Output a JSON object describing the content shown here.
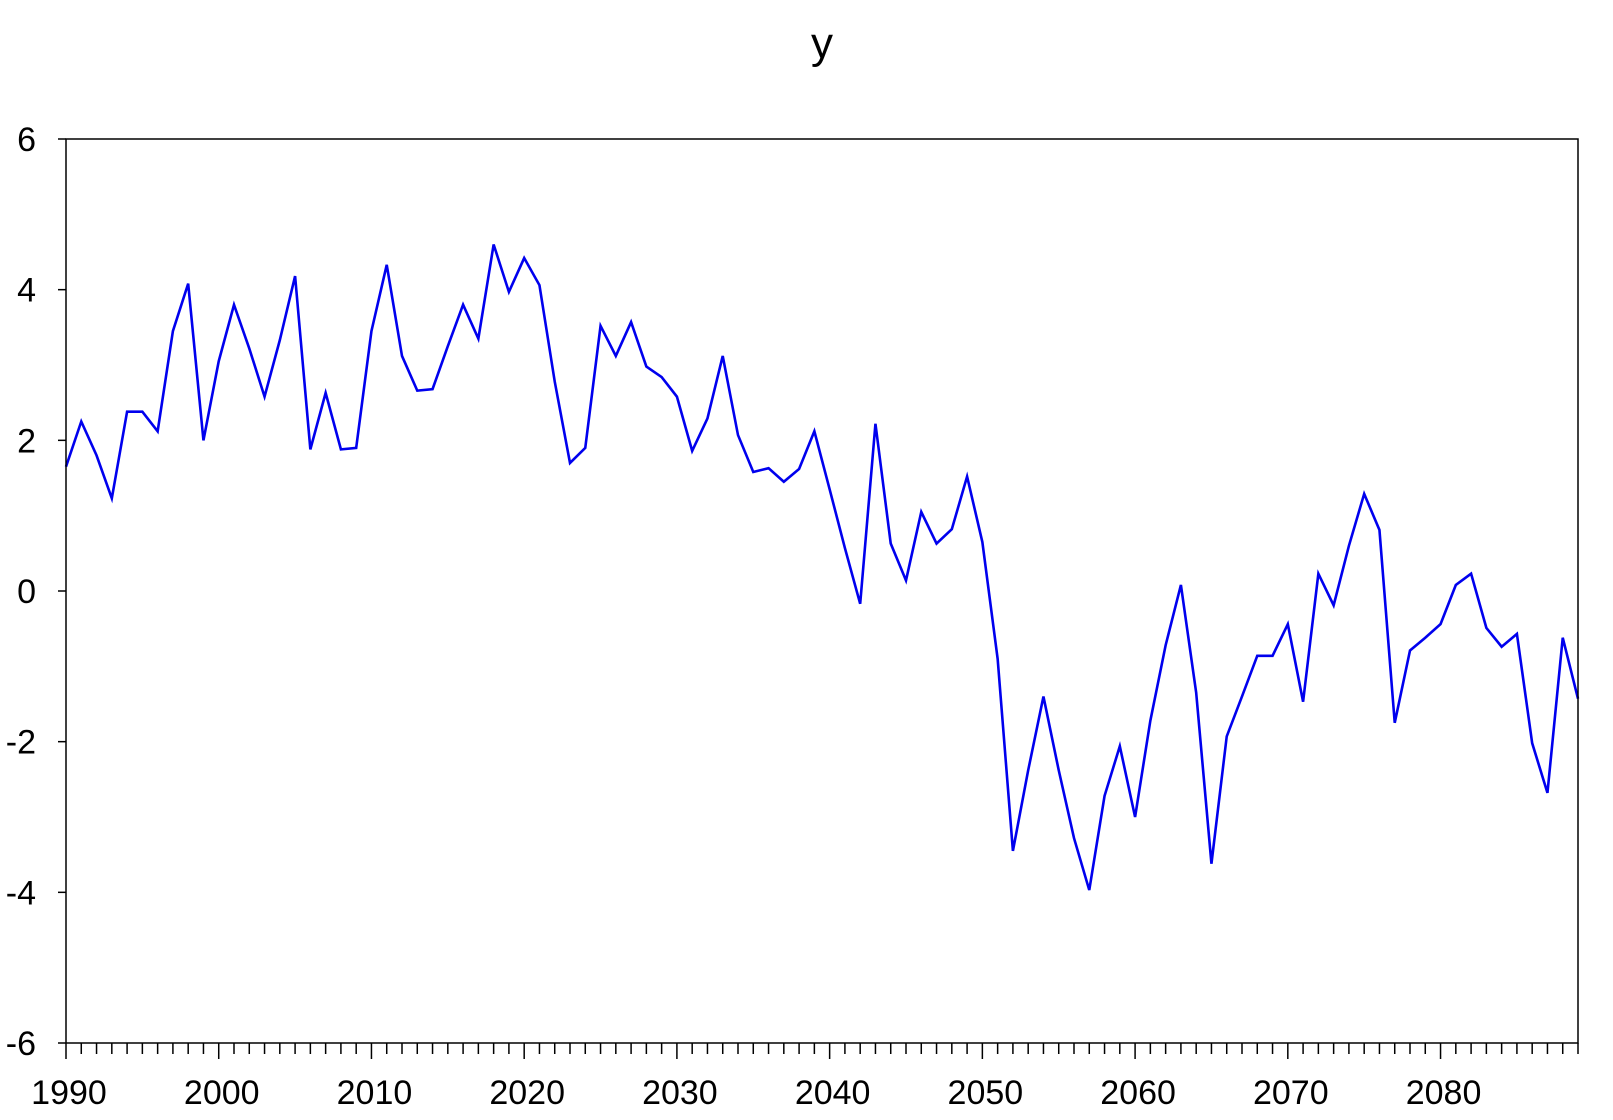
{
  "chart_data": {
    "type": "line",
    "title": "y",
    "xlabel": "",
    "ylabel": "",
    "xlim": [
      1990,
      2089
    ],
    "ylim": [
      -6,
      6
    ],
    "y_ticks": [
      6,
      4,
      2,
      0,
      -2,
      -4,
      -6
    ],
    "y_tick_labels": [
      "6",
      "4",
      "2",
      "0",
      "-2",
      "-4",
      "-6"
    ],
    "x_ticks": [
      1990,
      2000,
      2010,
      2020,
      2030,
      2040,
      2050,
      2060,
      2070,
      2080
    ],
    "x_tick_labels": [
      "1990",
      "2000",
      "2010",
      "2020",
      "2030",
      "2040",
      "2050",
      "2060",
      "2070",
      "2080"
    ],
    "grid": false,
    "legend": "none",
    "line_color": "#0000ee",
    "x": [
      1990,
      1991,
      1992,
      1993,
      1994,
      1995,
      1996,
      1997,
      1998,
      1999,
      2000,
      2001,
      2002,
      2003,
      2004,
      2005,
      2006,
      2007,
      2008,
      2009,
      2010,
      2011,
      2012,
      2013,
      2014,
      2015,
      2016,
      2017,
      2018,
      2019,
      2020,
      2021,
      2022,
      2023,
      2024,
      2025,
      2026,
      2027,
      2028,
      2029,
      2030,
      2031,
      2032,
      2033,
      2034,
      2035,
      2036,
      2037,
      2038,
      2039,
      2040,
      2041,
      2042,
      2043,
      2044,
      2045,
      2046,
      2047,
      2048,
      2049,
      2050,
      2051,
      2052,
      2053,
      2054,
      2055,
      2056,
      2057,
      2058,
      2059,
      2060,
      2061,
      2062,
      2063,
      2064,
      2065,
      2066,
      2067,
      2068,
      2069,
      2070,
      2071,
      2072,
      2073,
      2074,
      2075,
      2076,
      2077,
      2078,
      2079,
      2080,
      2081,
      2082,
      2083,
      2084,
      2085,
      2086,
      2087,
      2088,
      2089
    ],
    "series": [
      {
        "values": [
          1.65,
          2.25,
          1.8,
          1.23,
          2.38,
          2.38,
          2.12,
          3.45,
          4.08,
          2.0,
          3.05,
          3.8,
          3.22,
          2.58,
          3.33,
          4.18,
          1.88,
          2.63,
          1.88,
          1.9,
          3.45,
          4.33,
          3.12,
          2.66,
          2.68,
          3.25,
          3.8,
          3.35,
          4.6,
          3.97,
          4.42,
          4.06,
          2.78,
          1.7,
          1.9,
          3.52,
          3.12,
          3.57,
          2.98,
          2.84,
          2.58,
          1.86,
          2.29,
          3.12,
          2.07,
          1.58,
          1.63,
          1.45,
          1.62,
          2.12,
          1.35,
          0.57,
          -0.17,
          2.22,
          0.63,
          0.14,
          1.05,
          0.63,
          0.82,
          1.52,
          0.65,
          -0.9,
          -3.45,
          -2.38,
          -1.4,
          -2.38,
          -3.28,
          -3.97,
          -2.72,
          -2.06,
          -3.0,
          -1.72,
          -0.72,
          0.08,
          -1.35,
          -3.62,
          -1.93,
          -1.4,
          -0.86,
          -0.86,
          -0.44,
          -1.47,
          0.23,
          -0.19,
          0.6,
          1.29,
          0.81,
          -1.75,
          -0.79,
          -0.62,
          -0.44,
          0.08,
          0.23,
          -0.49,
          -0.74,
          -0.57,
          -2.02,
          -2.68,
          -0.62,
          -1.43
        ]
      }
    ]
  }
}
